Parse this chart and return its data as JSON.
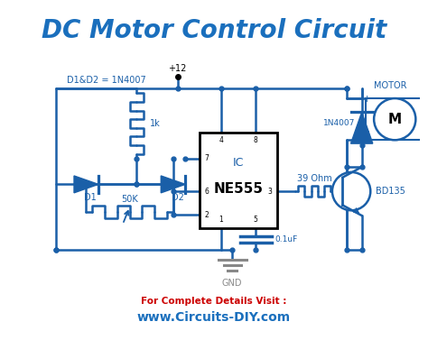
{
  "title": "DC Motor Control Circuit",
  "title_color": "#1a6fbd",
  "title_fontsize": 20,
  "bg_color": "#ffffff",
  "circuit_color": "#1a5fa8",
  "line_width": 1.8,
  "footer_text1": "For Complete Details Visit :",
  "footer_text2": "www.Circuits-DIY.com",
  "footer_color1": "#cc0000",
  "footer_color2": "#1a6fbd",
  "gnd_color": "#888888"
}
